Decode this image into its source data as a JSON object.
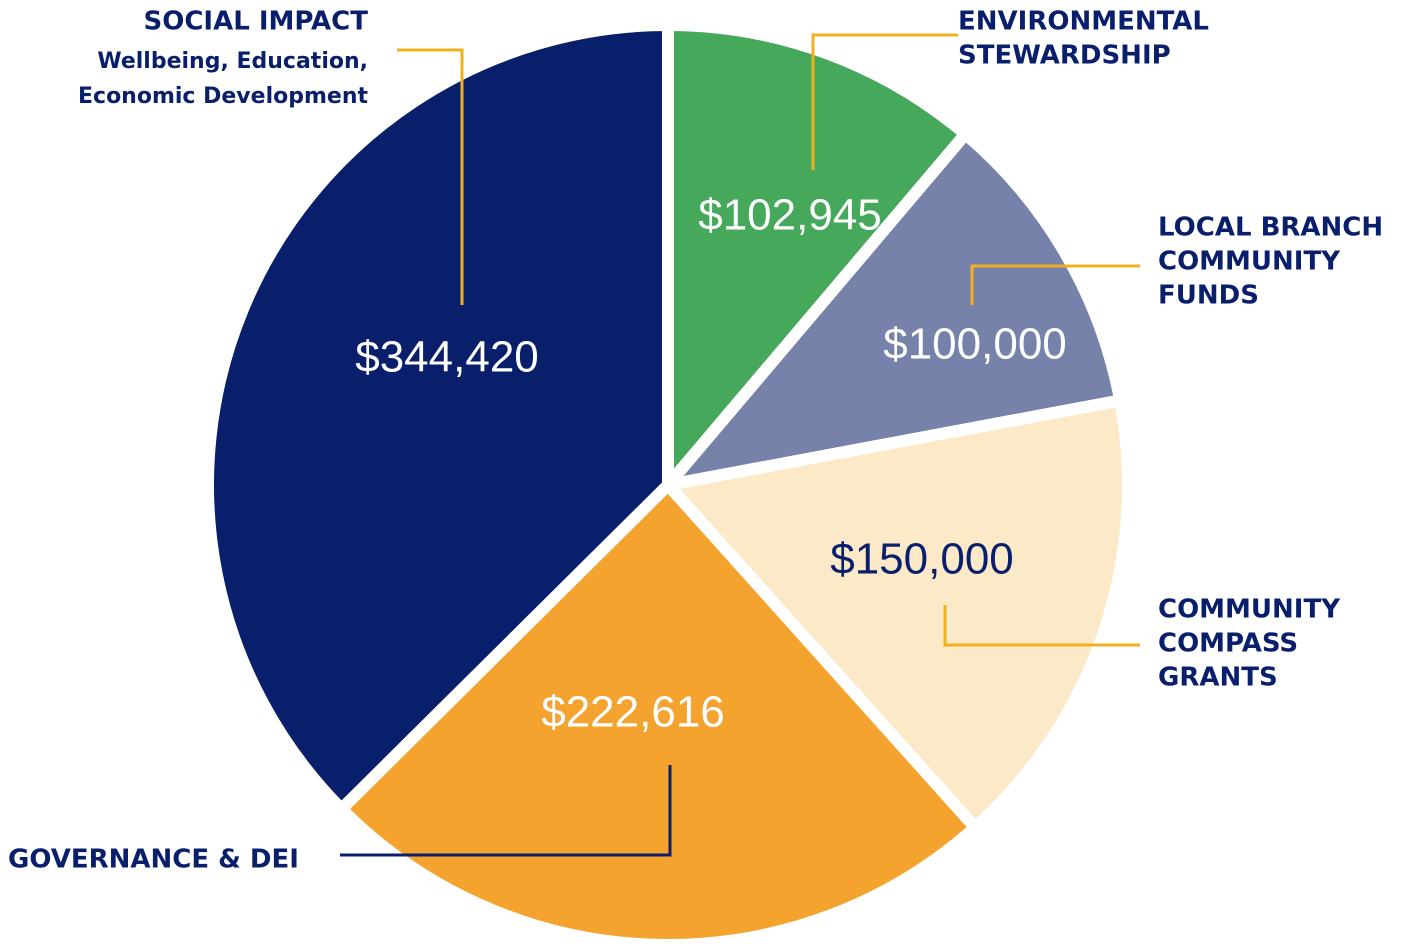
{
  "chart_data": {
    "type": "pie",
    "categories": [
      [
        "ENVIRONMENTAL",
        "STEWARDSHIP"
      ],
      [
        "LOCAL BRANCH",
        "COMMUNITY",
        "FUNDS"
      ],
      [
        "COMMUNITY",
        "COMPASS",
        "GRANTS"
      ],
      [
        "GOVERNANCE & DEI"
      ],
      [
        "SOCIAL IMPACT"
      ]
    ],
    "category_notes": [
      [],
      [],
      [],
      [],
      [
        "Wellbeing, Education,",
        "Economic Development"
      ]
    ],
    "values": [
      102945,
      100000,
      150000,
      222616,
      344420
    ],
    "value_labels": [
      "$102,945",
      "$100,000",
      "$150,000",
      "$222,616",
      "$344,420"
    ],
    "colors": [
      "#45a85a",
      "#7782ab",
      "#fce9c8",
      "#f5a32f",
      "#0a1f6b"
    ],
    "value_label_colors": [
      "#ffffff",
      "#ffffff",
      "#0a1f6b",
      "#ffffff",
      "#ffffff"
    ]
  }
}
